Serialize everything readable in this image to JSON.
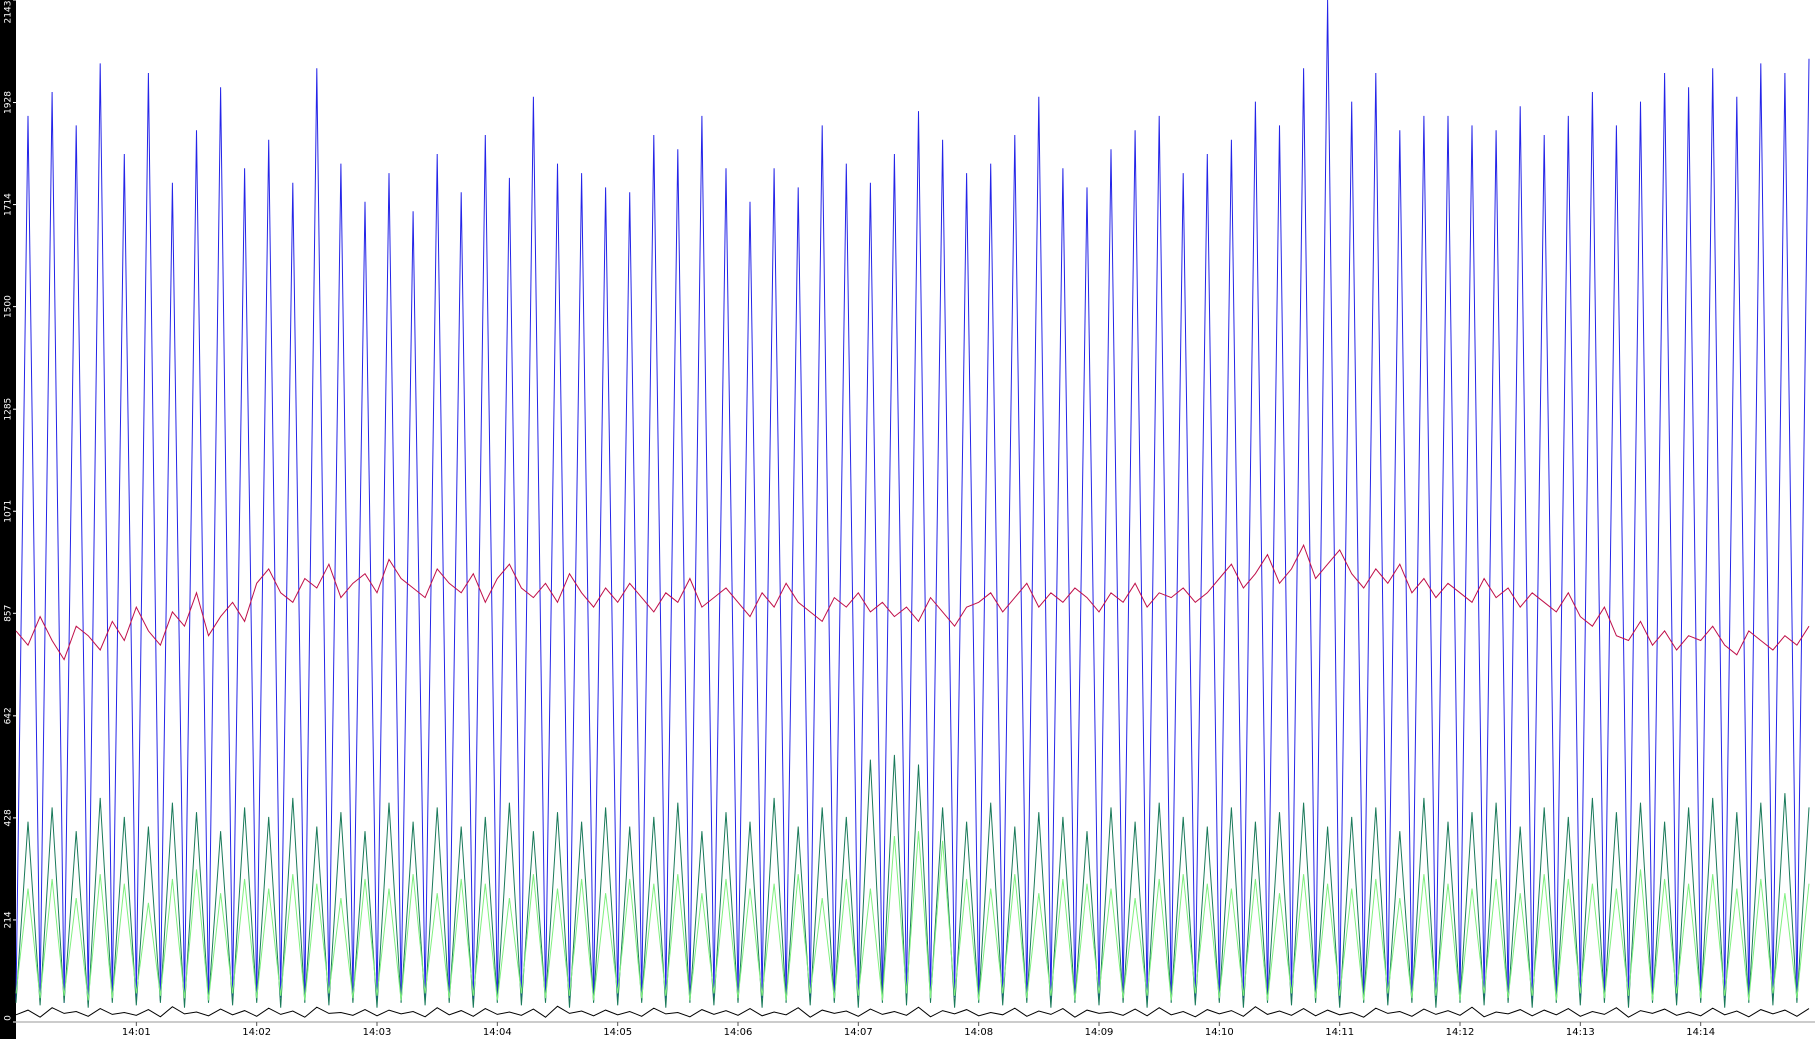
{
  "chart_data": {
    "type": "line",
    "x": [
      0,
      0.1,
      0.2,
      0.3,
      0.4,
      0.5,
      0.6,
      0.7,
      0.8,
      0.9,
      1,
      1.1,
      1.2,
      1.3,
      1.4,
      1.5,
      1.6,
      1.7,
      1.8,
      1.9,
      2,
      2.1,
      2.2,
      2.3,
      2.4,
      2.5,
      2.6,
      2.7,
      2.8,
      2.9,
      3,
      3.1,
      3.2,
      3.3,
      3.4,
      3.5,
      3.6,
      3.7,
      3.8,
      3.9,
      4,
      4.1,
      4.2,
      4.3,
      4.4,
      4.5,
      4.6,
      4.7,
      4.8,
      4.9,
      5,
      5.1,
      5.2,
      5.3,
      5.4,
      5.5,
      5.6,
      5.7,
      5.8,
      5.9,
      6,
      6.1,
      6.2,
      6.3,
      6.4,
      6.5,
      6.6,
      6.7,
      6.8,
      6.9,
      7,
      7.1,
      7.2,
      7.3,
      7.4,
      7.5,
      7.6,
      7.7,
      7.8,
      7.9,
      8,
      8.1,
      8.2,
      8.3,
      8.4,
      8.5,
      8.6,
      8.7,
      8.8,
      8.9,
      9,
      9.1,
      9.2,
      9.3,
      9.4,
      9.5,
      9.6,
      9.7,
      9.8,
      9.9,
      10,
      10.1,
      10.2,
      10.3,
      10.4,
      10.5,
      10.6,
      10.7,
      10.8,
      10.9,
      11,
      11.1,
      11.2,
      11.3,
      11.4,
      11.5,
      11.6,
      11.7,
      11.8,
      11.9,
      12,
      12.1,
      12.2,
      12.3,
      12.4,
      12.5,
      12.6,
      12.7,
      12.8,
      12.9,
      13,
      13.1,
      13.2,
      13.3,
      13.4,
      13.5,
      13.6,
      13.7,
      13.8,
      13.9,
      14,
      14.1,
      14.2,
      14.3,
      14.4,
      14.5,
      14.6,
      14.7,
      14.8,
      14.9
    ],
    "xlim": [
      0,
      14.95
    ],
    "xticks": [
      {
        "value": 1,
        "label": "14:01"
      },
      {
        "value": 2,
        "label": "14:02"
      },
      {
        "value": 3,
        "label": "14:03"
      },
      {
        "value": 4,
        "label": "14:04"
      },
      {
        "value": 5,
        "label": "14:05"
      },
      {
        "value": 6,
        "label": "14:06"
      },
      {
        "value": 7,
        "label": "14:07"
      },
      {
        "value": 8,
        "label": "14:08"
      },
      {
        "value": 9,
        "label": "14:09"
      },
      {
        "value": 10,
        "label": "14:10"
      },
      {
        "value": 11,
        "label": "14:11"
      },
      {
        "value": 12,
        "label": "14:12"
      },
      {
        "value": 13,
        "label": "14:13"
      },
      {
        "value": 14,
        "label": "14:14"
      }
    ],
    "ylim": [
      0,
      2143
    ],
    "yticks": [
      0,
      214,
      428,
      642,
      857,
      1071,
      1285,
      1500,
      1714,
      1928,
      2143
    ],
    "series": [
      {
        "color": "#2424e8",
        "values": [
          45,
          1900,
          50,
          1950,
          40,
          1880,
          55,
          2010,
          48,
          1820,
          52,
          1990,
          44,
          1760,
          50,
          1870,
          46,
          1960,
          53,
          1790,
          47,
          1850,
          51,
          1760,
          45,
          2000,
          49,
          1800,
          52,
          1720,
          44,
          1780,
          50,
          1700,
          46,
          1820,
          53,
          1740,
          48,
          1860,
          45,
          1770,
          51,
          1940,
          47,
          1800,
          50,
          1780,
          44,
          1750,
          52,
          1740,
          46,
          1860,
          49,
          1830,
          53,
          1900,
          45,
          1790,
          48,
          1720,
          50,
          1790,
          46,
          1750,
          51,
          1880,
          44,
          1800,
          53,
          1760,
          47,
          1820,
          49,
          1910,
          45,
          1850,
          52,
          1780,
          46,
          1800,
          50,
          1860,
          48,
          1940,
          44,
          1790,
          51,
          1750,
          47,
          1830,
          53,
          1870,
          45,
          1900,
          49,
          1780,
          52,
          1820,
          46,
          1850,
          50,
          1930,
          48,
          1880,
          44,
          2000,
          51,
          2143,
          47,
          1930,
          53,
          1990,
          45,
          1870,
          49,
          1900,
          52,
          1900,
          46,
          1880,
          50,
          1870,
          48,
          1920,
          44,
          1860,
          51,
          1900,
          47,
          1950,
          53,
          1880,
          45,
          1930,
          49,
          1990,
          52,
          1960,
          46,
          2000,
          50,
          1940,
          48,
          2010,
          44,
          1990,
          51,
          2020
        ]
      },
      {
        "color": "#1a7a5a",
        "values": [
          40,
          420,
          35,
          450,
          40,
          400,
          30,
          470,
          40,
          430,
          35,
          410,
          40,
          460,
          30,
          440,
          40,
          400,
          35,
          450,
          40,
          430,
          30,
          470,
          40,
          410,
          35,
          440,
          40,
          400,
          30,
          460,
          40,
          420,
          35,
          450,
          40,
          410,
          30,
          430,
          40,
          460,
          35,
          400,
          40,
          440,
          30,
          420,
          40,
          450,
          35,
          410,
          40,
          430,
          30,
          460,
          40,
          400,
          35,
          440,
          40,
          420,
          30,
          470,
          40,
          410,
          35,
          450,
          40,
          430,
          30,
          550,
          40,
          560,
          35,
          540,
          40,
          450,
          30,
          420,
          40,
          460,
          35,
          410,
          40,
          440,
          30,
          430,
          40,
          400,
          35,
          450,
          40,
          420,
          30,
          460,
          40,
          430,
          35,
          410,
          40,
          450,
          30,
          420,
          40,
          440,
          35,
          460,
          40,
          410,
          30,
          430,
          40,
          450,
          35,
          400,
          40,
          470,
          30,
          420,
          40,
          440,
          35,
          460,
          40,
          410,
          30,
          450,
          40,
          430,
          35,
          470,
          40,
          440,
          30,
          460,
          40,
          420,
          35,
          450,
          40,
          470,
          30,
          440,
          40,
          460,
          35,
          480,
          40,
          450
        ]
      },
      {
        "color": "#80f080",
        "values": [
          60,
          280,
          50,
          300,
          55,
          260,
          45,
          310,
          50,
          290,
          60,
          250,
          55,
          300,
          50,
          320,
          45,
          270,
          60,
          300,
          50,
          280,
          55,
          310,
          45,
          290,
          60,
          260,
          50,
          300,
          55,
          280,
          45,
          310,
          60,
          270,
          50,
          300,
          55,
          290,
          45,
          260,
          60,
          310,
          50,
          280,
          55,
          300,
          45,
          270,
          60,
          300,
          50,
          290,
          55,
          310,
          45,
          270,
          60,
          300,
          50,
          280,
          55,
          290,
          45,
          310,
          60,
          260,
          50,
          300,
          55,
          280,
          45,
          390,
          60,
          400,
          50,
          380,
          55,
          300,
          45,
          280,
          60,
          310,
          50,
          270,
          55,
          300,
          45,
          290,
          60,
          280,
          50,
          260,
          55,
          300,
          45,
          310,
          60,
          290,
          50,
          280,
          55,
          300,
          45,
          270,
          60,
          310,
          50,
          290,
          55,
          280,
          45,
          300,
          60,
          260,
          50,
          310,
          55,
          290,
          45,
          280,
          60,
          300,
          50,
          270,
          55,
          310,
          45,
          300,
          60,
          290,
          50,
          280,
          55,
          320,
          45,
          300,
          60,
          290,
          50,
          310,
          55,
          280,
          45,
          300,
          60,
          270,
          50,
          290
        ]
      },
      {
        "color": "#000000",
        "values": [
          15,
          25,
          10,
          30,
          18,
          22,
          12,
          28,
          16,
          20,
          14,
          26,
          11,
          32,
          17,
          21,
          13,
          27,
          15,
          24,
          12,
          29,
          16,
          23,
          10,
          31,
          18,
          20,
          14,
          26,
          13,
          25,
          17,
          22,
          11,
          30,
          15,
          24,
          12,
          28,
          16,
          21,
          14,
          27,
          10,
          33,
          18,
          23,
          13,
          25,
          15,
          22,
          12,
          29,
          17,
          20,
          11,
          26,
          16,
          24,
          14,
          28,
          13,
          21,
          15,
          30,
          10,
          25,
          18,
          23,
          12,
          27,
          16,
          22,
          14,
          31,
          11,
          24,
          17,
          26,
          13,
          20,
          15,
          29,
          12,
          23,
          16,
          28,
          10,
          25,
          18,
          21,
          14,
          27,
          13,
          30,
          15,
          22,
          11,
          26,
          17,
          24,
          12,
          32,
          16,
          23,
          14,
          28,
          13,
          25,
          15,
          20,
          10,
          29,
          18,
          22,
          12,
          27,
          16,
          24,
          14,
          31,
          11,
          21,
          17,
          26,
          13,
          25,
          15,
          28,
          12,
          22,
          16,
          30,
          10,
          24,
          18,
          27,
          14,
          21,
          13,
          29,
          15,
          23,
          11,
          26,
          17,
          25,
          12,
          28
        ]
      },
      {
        "color": "#c0104a",
        "values": [
          820,
          790,
          850,
          800,
          760,
          830,
          810,
          780,
          840,
          800,
          870,
          820,
          790,
          860,
          830,
          900,
          810,
          850,
          880,
          840,
          920,
          950,
          900,
          880,
          930,
          910,
          960,
          890,
          920,
          940,
          900,
          970,
          930,
          910,
          890,
          950,
          920,
          900,
          940,
          880,
          930,
          960,
          910,
          890,
          920,
          880,
          940,
          900,
          870,
          910,
          880,
          920,
          890,
          860,
          900,
          880,
          930,
          870,
          890,
          910,
          880,
          850,
          900,
          870,
          920,
          880,
          860,
          840,
          890,
          870,
          900,
          860,
          880,
          850,
          870,
          840,
          890,
          860,
          830,
          870,
          880,
          900,
          860,
          890,
          920,
          870,
          900,
          880,
          910,
          890,
          860,
          900,
          880,
          920,
          870,
          900,
          890,
          910,
          880,
          900,
          930,
          960,
          910,
          940,
          980,
          920,
          950,
          1000,
          930,
          960,
          990,
          940,
          910,
          950,
          920,
          960,
          900,
          930,
          890,
          920,
          900,
          880,
          930,
          890,
          910,
          870,
          900,
          880,
          860,
          900,
          850,
          830,
          870,
          810,
          800,
          840,
          790,
          820,
          780,
          810,
          800,
          830,
          790,
          770,
          820,
          800,
          780,
          810,
          790,
          830
        ]
      }
    ]
  }
}
